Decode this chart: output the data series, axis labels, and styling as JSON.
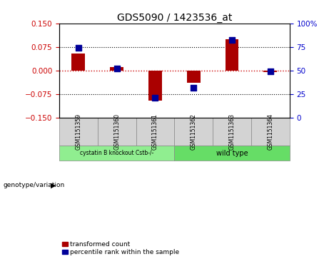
{
  "title": "GDS5090 / 1423536_at",
  "samples": [
    "GSM1151359",
    "GSM1151360",
    "GSM1151361",
    "GSM1151362",
    "GSM1151363",
    "GSM1151364"
  ],
  "transformed_count": [
    0.055,
    0.01,
    -0.095,
    -0.038,
    0.1,
    -0.005
  ],
  "percentile_rank": [
    74,
    52,
    21,
    32,
    82,
    49
  ],
  "ylim_left": [
    -0.15,
    0.15
  ],
  "ylim_right": [
    0,
    100
  ],
  "yticks_left": [
    -0.15,
    -0.075,
    0,
    0.075,
    0.15
  ],
  "yticks_right": [
    0,
    25,
    50,
    75,
    100
  ],
  "group1_label": "cystatin B knockout Cstb-/-",
  "group2_label": "wild type",
  "group1_indices": [
    0,
    1,
    2
  ],
  "group2_indices": [
    3,
    4,
    5
  ],
  "group1_color": "#90EE90",
  "group2_color": "#66DD66",
  "bar_color": "#AA0000",
  "dot_color": "#000099",
  "bar_width": 0.35,
  "dot_size": 30,
  "genotype_label": "genotype/variation",
  "legend_bar_label": "transformed count",
  "legend_dot_label": "percentile rank within the sample",
  "background_color": "#ffffff",
  "left_axis_color": "#cc0000",
  "right_axis_color": "#0000cc",
  "sample_box_color": "#d3d3d3"
}
